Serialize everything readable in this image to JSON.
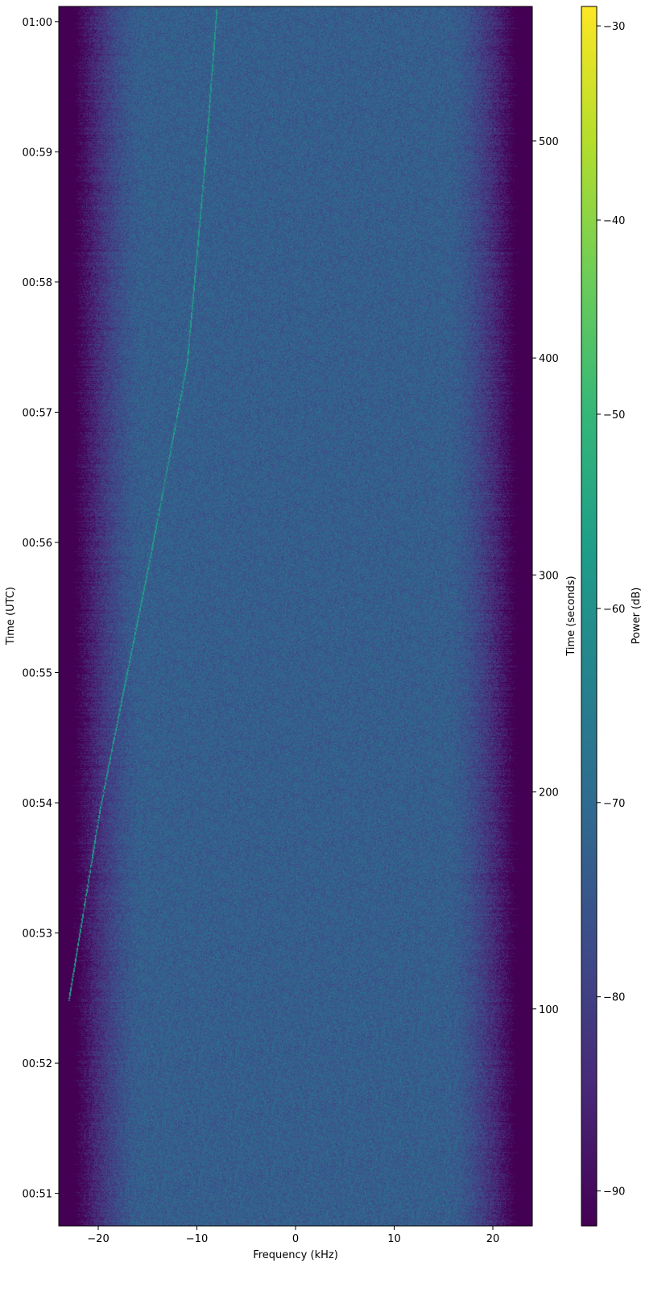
{
  "chart_data": {
    "type": "heatmap",
    "subtype": "spectrogram",
    "colormap": "viridis",
    "xlabel": "Frequency (kHz)",
    "ylabel_left": "Time (UTC)",
    "ylabel_right": "Time (seconds)",
    "colorbar_label": "Power (dB)",
    "xlim": [
      -24,
      24
    ],
    "ylim_seconds": [
      0,
      562
    ],
    "utc_start": "00:50:45",
    "clim": [
      -91.8,
      -29
    ],
    "x_ticks": [
      -20,
      -10,
      0,
      10,
      20
    ],
    "x_tick_labels": [
      "−20",
      "−10",
      "0",
      "10",
      "20"
    ],
    "left_ticks_utc": [
      "00:51",
      "00:52",
      "00:53",
      "00:54",
      "00:55",
      "00:56",
      "00:57",
      "00:58",
      "00:59",
      "01:00"
    ],
    "right_ticks_seconds": [
      100,
      200,
      300,
      400,
      500
    ],
    "colorbar_ticks": [
      -90,
      -80,
      -70,
      -60,
      -50,
      -40,
      -30
    ],
    "colorbar_tick_labels": [
      "−90",
      "−80",
      "−70",
      "−60",
      "−50",
      "−40",
      "−30"
    ],
    "noise_floor_db": -73,
    "passband_edge_khz": 22,
    "out_of_band_db": -92,
    "signal_trace": {
      "power_db": -57,
      "points": [
        {
          "t": 104,
          "f": -23.0
        },
        {
          "t": 193,
          "f": -19.8
        },
        {
          "t": 314,
          "f": -14.5
        },
        {
          "t": 398,
          "f": -11.0
        },
        {
          "t": 490,
          "f": -9.2
        },
        {
          "t": 561,
          "f": -8.0
        }
      ]
    }
  }
}
